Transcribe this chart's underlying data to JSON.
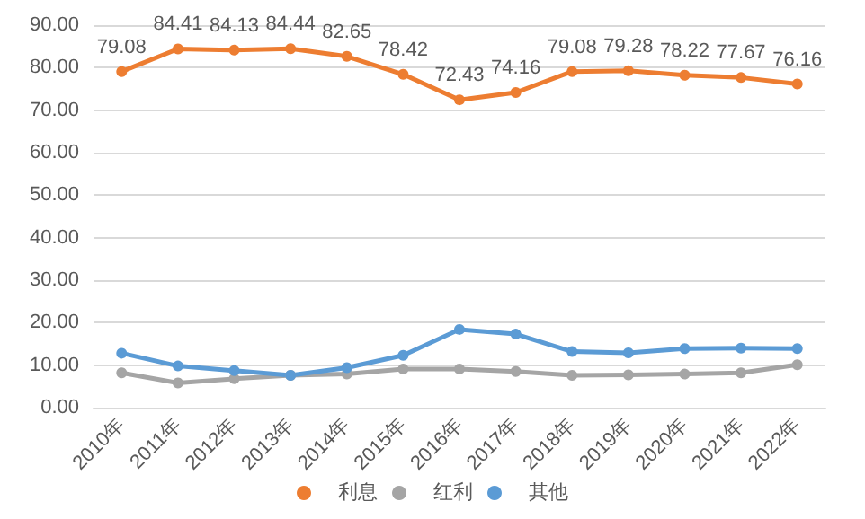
{
  "chart_data": {
    "type": "line",
    "categories": [
      "2010年",
      "2011年",
      "2012年",
      "2013年",
      "2014年",
      "2015年",
      "2016年",
      "2017年",
      "2018年",
      "2019年",
      "2020年",
      "2021年",
      "2022年"
    ],
    "series": [
      {
        "name": "利息",
        "color": "#ed7d31",
        "values": [
          79.08,
          84.41,
          84.13,
          84.44,
          82.65,
          78.42,
          72.43,
          74.16,
          79.08,
          79.28,
          78.22,
          77.67,
          76.16
        ],
        "value_labels": [
          "79.08",
          "84.41",
          "84.13",
          "84.44",
          "82.65",
          "78.42",
          "72.43",
          "74.16",
          "79.08",
          "79.28",
          "78.22",
          "77.67",
          "76.16"
        ]
      },
      {
        "name": "红利",
        "color": "#a5a5a5",
        "values": [
          8.2,
          5.8,
          6.8,
          7.6,
          7.9,
          9.1,
          9.1,
          8.5,
          7.6,
          7.7,
          7.9,
          8.2,
          10.1
        ]
      },
      {
        "name": "其他",
        "color": "#5b9bd5",
        "values": [
          12.8,
          9.8,
          8.7,
          7.6,
          9.4,
          12.3,
          18.4,
          17.3,
          13.2,
          12.9,
          13.9,
          14.0,
          13.9
        ]
      }
    ],
    "ylim": [
      0,
      90
    ],
    "yticks": [
      {
        "value": 0,
        "label": "0.00"
      },
      {
        "value": 10,
        "label": "10.00"
      },
      {
        "value": 20,
        "label": "20.00"
      },
      {
        "value": 30,
        "label": "30.00"
      },
      {
        "value": 40,
        "label": "40.00"
      },
      {
        "value": 50,
        "label": "50.00"
      },
      {
        "value": 60,
        "label": "60.00"
      },
      {
        "value": 70,
        "label": "70.00"
      },
      {
        "value": 80,
        "label": "80.00"
      },
      {
        "value": 90,
        "label": "90.00"
      }
    ],
    "grid": "y",
    "legend": "bottom",
    "marker": "circle",
    "line_style": "solid"
  }
}
